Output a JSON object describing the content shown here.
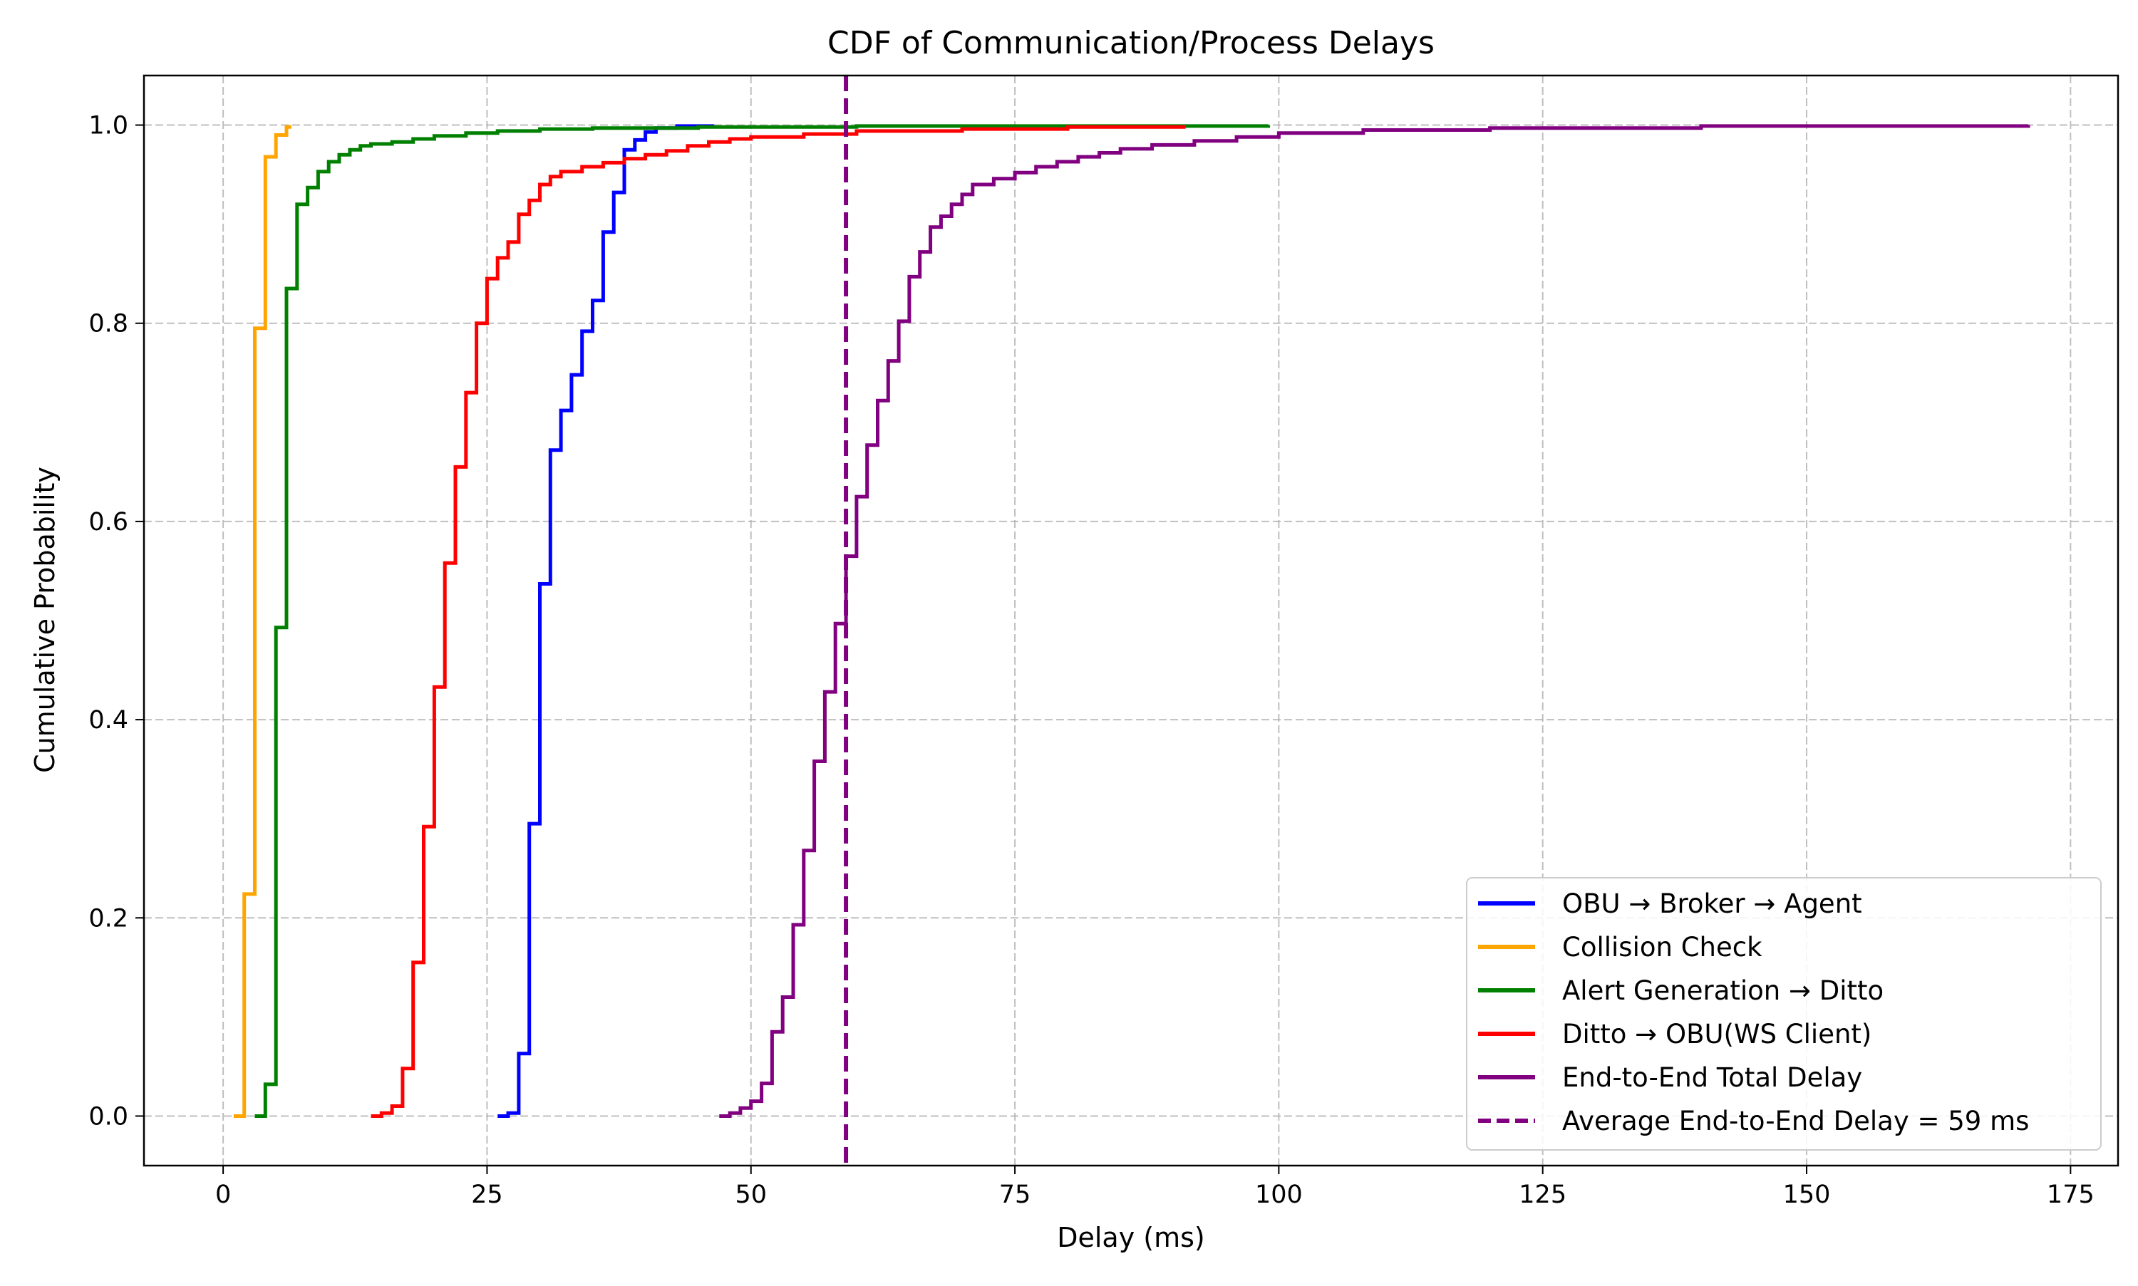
{
  "chart_data": {
    "type": "line",
    "title": "CDF of Communication/Process Delays",
    "xlabel": "Delay (ms)",
    "ylabel": "Cumulative Probability",
    "xlim": [
      -7.5,
      179.5
    ],
    "ylim": [
      -0.05,
      1.05
    ],
    "xticks": [
      0,
      25,
      50,
      75,
      100,
      125,
      150,
      175
    ],
    "yticks": [
      0.0,
      0.2,
      0.4,
      0.6,
      0.8,
      1.0
    ],
    "grid": true,
    "legend_position": "bottom-right",
    "series": [
      {
        "name": "OBU → Broker → Agent",
        "color": "#0000ff",
        "style": "step",
        "points": [
          [
            26,
            0.0
          ],
          [
            27,
            0.003
          ],
          [
            28,
            0.063
          ],
          [
            29,
            0.295
          ],
          [
            30,
            0.537
          ],
          [
            31,
            0.672
          ],
          [
            32,
            0.712
          ],
          [
            33,
            0.748
          ],
          [
            34,
            0.792
          ],
          [
            35,
            0.823
          ],
          [
            36,
            0.892
          ],
          [
            37,
            0.932
          ],
          [
            38,
            0.975
          ],
          [
            39,
            0.985
          ],
          [
            40,
            0.993
          ],
          [
            41,
            0.997
          ],
          [
            43,
            0.999
          ],
          [
            46.5,
            1.0
          ]
        ]
      },
      {
        "name": "Collision Check",
        "color": "#ffa500",
        "style": "step",
        "points": [
          [
            1,
            0.0
          ],
          [
            2,
            0.224
          ],
          [
            3,
            0.795
          ],
          [
            4,
            0.968
          ],
          [
            5,
            0.99
          ],
          [
            6,
            0.998
          ],
          [
            6.3,
            1.0
          ]
        ]
      },
      {
        "name": "Alert Generation → Ditto",
        "color": "#008000",
        "style": "step",
        "points": [
          [
            3,
            0.0
          ],
          [
            4,
            0.032
          ],
          [
            5,
            0.493
          ],
          [
            6,
            0.835
          ],
          [
            7,
            0.92
          ],
          [
            8,
            0.937
          ],
          [
            9,
            0.953
          ],
          [
            10,
            0.963
          ],
          [
            11,
            0.97
          ],
          [
            12,
            0.975
          ],
          [
            13,
            0.979
          ],
          [
            14,
            0.981
          ],
          [
            16,
            0.983
          ],
          [
            18,
            0.986
          ],
          [
            20,
            0.989
          ],
          [
            23,
            0.992
          ],
          [
            26,
            0.994
          ],
          [
            30,
            0.996
          ],
          [
            35,
            0.997
          ],
          [
            45,
            0.998
          ],
          [
            60,
            0.999
          ],
          [
            99,
            1.0
          ]
        ]
      },
      {
        "name": "Ditto → OBU(WS Client)",
        "color": "#ff0000",
        "style": "step",
        "points": [
          [
            14,
            0.0
          ],
          [
            15,
            0.003
          ],
          [
            16,
            0.01
          ],
          [
            17,
            0.048
          ],
          [
            18,
            0.155
          ],
          [
            19,
            0.292
          ],
          [
            20,
            0.433
          ],
          [
            21,
            0.558
          ],
          [
            22,
            0.655
          ],
          [
            23,
            0.73
          ],
          [
            24,
            0.8
          ],
          [
            25,
            0.845
          ],
          [
            26,
            0.866
          ],
          [
            27,
            0.882
          ],
          [
            28,
            0.91
          ],
          [
            29,
            0.924
          ],
          [
            30,
            0.94
          ],
          [
            31,
            0.948
          ],
          [
            32,
            0.953
          ],
          [
            34,
            0.958
          ],
          [
            36,
            0.962
          ],
          [
            38,
            0.966
          ],
          [
            40,
            0.97
          ],
          [
            42,
            0.974
          ],
          [
            44,
            0.979
          ],
          [
            46,
            0.983
          ],
          [
            48,
            0.986
          ],
          [
            50,
            0.988
          ],
          [
            55,
            0.991
          ],
          [
            60,
            0.994
          ],
          [
            70,
            0.996
          ],
          [
            80,
            0.998
          ],
          [
            91,
            1.0
          ]
        ]
      },
      {
        "name": "End-to-End Total Delay",
        "color": "#800080",
        "style": "step",
        "points": [
          [
            47,
            0.0
          ],
          [
            48,
            0.003
          ],
          [
            49,
            0.008
          ],
          [
            50,
            0.015
          ],
          [
            51,
            0.033
          ],
          [
            52,
            0.085
          ],
          [
            53,
            0.12
          ],
          [
            54,
            0.193
          ],
          [
            55,
            0.268
          ],
          [
            56,
            0.358
          ],
          [
            57,
            0.428
          ],
          [
            58,
            0.497
          ],
          [
            59,
            0.565
          ],
          [
            60,
            0.625
          ],
          [
            61,
            0.677
          ],
          [
            62,
            0.722
          ],
          [
            63,
            0.762
          ],
          [
            64,
            0.802
          ],
          [
            65,
            0.847
          ],
          [
            66,
            0.872
          ],
          [
            67,
            0.897
          ],
          [
            68,
            0.908
          ],
          [
            69,
            0.92
          ],
          [
            70,
            0.93
          ],
          [
            71,
            0.94
          ],
          [
            73,
            0.946
          ],
          [
            75,
            0.952
          ],
          [
            77,
            0.958
          ],
          [
            79,
            0.963
          ],
          [
            81,
            0.968
          ],
          [
            83,
            0.972
          ],
          [
            85,
            0.976
          ],
          [
            88,
            0.98
          ],
          [
            92,
            0.984
          ],
          [
            96,
            0.988
          ],
          [
            100,
            0.992
          ],
          [
            108,
            0.995
          ],
          [
            120,
            0.997
          ],
          [
            140,
            0.999
          ],
          [
            171,
            1.0
          ]
        ]
      },
      {
        "name": "Average End-to-End Delay = 59 ms",
        "color": "#800080",
        "style": "dashed-vertical",
        "x": 59
      }
    ]
  }
}
